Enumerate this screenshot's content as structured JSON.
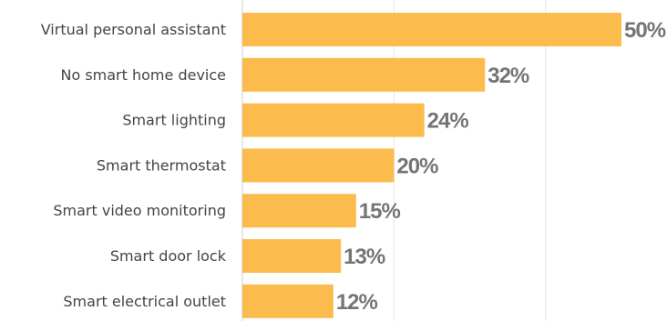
{
  "chart_data": {
    "type": "bar",
    "orientation": "horizontal",
    "categories": [
      "Virtual personal assistant",
      "No smart home device",
      "Smart lighting",
      "Smart thermostat",
      "Smart video monitoring",
      "Smart door lock",
      "Smart electrical outlet"
    ],
    "values": [
      50,
      32,
      24,
      20,
      15,
      13,
      12
    ],
    "value_labels": [
      "50%",
      "32%",
      "24%",
      "20%",
      "15%",
      "13%",
      "12%"
    ],
    "xlim": [
      0,
      50
    ],
    "grid": true,
    "bar_color": "#fbbb4d",
    "title": "",
    "xlabel": "",
    "ylabel": ""
  }
}
